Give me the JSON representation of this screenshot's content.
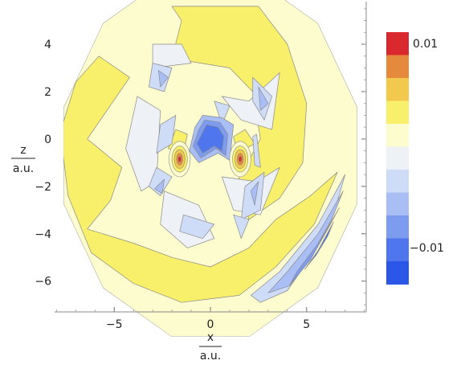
{
  "chart_data": {
    "type": "contour",
    "title": "",
    "xlabel": "x",
    "xunit": "a.u.",
    "ylabel": "z",
    "yunit": "a.u.",
    "xlim": [
      -8.1,
      8.1
    ],
    "ylim": [
      -7.3,
      5.8
    ],
    "xticks": [
      -5,
      0,
      5
    ],
    "yticks": [
      -6,
      -4,
      -2,
      0,
      2,
      4
    ],
    "xtick_labels": [
      "−5",
      "0",
      "5"
    ],
    "ytick_labels": [
      "−6",
      "−4",
      "−2",
      "0",
      "2",
      "4"
    ],
    "grid": false,
    "domain_shape": "dodecagon",
    "domain_radius": 7.9,
    "legend": "colorbar-right",
    "colorbar": {
      "levels": [
        -0.01,
        -0.008,
        -0.006,
        -0.004,
        -0.002,
        0,
        0.002,
        0.004,
        0.006,
        0.008,
        0.01
      ],
      "colors": [
        "#2b57e8",
        "#4f76ec",
        "#7d9cf0",
        "#a8bef5",
        "#cfdcf8",
        "#eef1f5",
        "#fcfccf",
        "#f8f06a",
        "#f2c94c",
        "#e58a3c",
        "#d9282e"
      ],
      "label_top": "0.01",
      "label_bottom": "−0.01"
    },
    "regions": [
      {
        "band": 7,
        "points": [
          [
            -2,
            5.6
          ],
          [
            2.5,
            5.6
          ],
          [
            4,
            4
          ],
          [
            5,
            1.5
          ],
          [
            4.8,
            -1
          ],
          [
            3.6,
            -2.5
          ],
          [
            2,
            -3.4
          ],
          [
            1.4,
            -1.8
          ],
          [
            2.6,
            0
          ],
          [
            2.2,
            2
          ],
          [
            1,
            3
          ],
          [
            -2,
            3.4
          ],
          [
            -1.5,
            5
          ]
        ]
      },
      {
        "band": 7,
        "points": [
          [
            -5.8,
            3.5
          ],
          [
            -4.2,
            2.6
          ],
          [
            -6.4,
            0
          ],
          [
            -4.6,
            -1.2
          ],
          [
            -5.2,
            -2.6
          ],
          [
            -6.4,
            -3.8
          ],
          [
            -4,
            -4.4
          ],
          [
            -2,
            -5
          ],
          [
            0,
            -5.4
          ],
          [
            2,
            -4.6
          ],
          [
            3.4,
            -3.4
          ],
          [
            5.2,
            -2.4
          ],
          [
            6.6,
            -1.4
          ],
          [
            5.4,
            -3.6
          ],
          [
            3.4,
            -5.4
          ],
          [
            1.5,
            -6.6
          ],
          [
            -1.5,
            -6.9
          ],
          [
            -4,
            -6.1
          ],
          [
            -6.2,
            -4.8
          ],
          [
            -7.4,
            -2.4
          ],
          [
            -7.8,
            0.3
          ],
          [
            -7,
            2.4
          ]
        ]
      },
      {
        "band": 7,
        "points": [
          [
            -1.8,
            0.4
          ],
          [
            -1.2,
            0.2
          ],
          [
            -1.4,
            -0.6
          ],
          [
            -2.2,
            -0.4
          ]
        ]
      },
      {
        "band": 7,
        "points": [
          [
            1.8,
            0.4
          ],
          [
            2.3,
            -0.2
          ],
          [
            1.4,
            -0.6
          ],
          [
            1.2,
            0.1
          ]
        ]
      },
      {
        "band": 5,
        "points": [
          [
            -3,
            4
          ],
          [
            -1.5,
            4
          ],
          [
            -1,
            3.2
          ],
          [
            -3,
            3
          ]
        ]
      },
      {
        "band": 5,
        "points": [
          [
            -3.8,
            1.8
          ],
          [
            -2.6,
            1.2
          ],
          [
            -2.8,
            -1.8
          ],
          [
            -3.6,
            -2.2
          ],
          [
            -4.4,
            -0.4
          ]
        ]
      },
      {
        "band": 5,
        "points": [
          [
            -2.4,
            -2.2
          ],
          [
            -0.6,
            -2.8
          ],
          [
            0.2,
            -4.2
          ],
          [
            -1.2,
            -4.6
          ],
          [
            -2.6,
            -3.6
          ]
        ]
      },
      {
        "band": 5,
        "points": [
          [
            0.6,
            1.8
          ],
          [
            2,
            1.6
          ],
          [
            3.6,
            2.8
          ],
          [
            3.2,
            0.4
          ],
          [
            1.6,
            0.8
          ]
        ]
      },
      {
        "band": 5,
        "points": [
          [
            0.6,
            -1.6
          ],
          [
            2.4,
            -1.8
          ],
          [
            3.6,
            -1.2
          ],
          [
            2.6,
            -3.2
          ],
          [
            1.2,
            -3
          ]
        ]
      },
      {
        "band": 4,
        "points": [
          [
            -3,
            3.2
          ],
          [
            -2,
            3
          ],
          [
            -2.4,
            2
          ],
          [
            -3.2,
            2.2
          ]
        ]
      },
      {
        "band": 4,
        "points": [
          [
            -2.6,
            0.6
          ],
          [
            -1.8,
            1
          ],
          [
            -2,
            -0.2
          ],
          [
            -2.8,
            -0.6
          ]
        ]
      },
      {
        "band": 4,
        "points": [
          [
            2.2,
            2.6
          ],
          [
            3.2,
            1.8
          ],
          [
            2.8,
            0.8
          ],
          [
            2.2,
            1.6
          ]
        ]
      },
      {
        "band": 4,
        "points": [
          [
            0.2,
            1.6
          ],
          [
            1,
            1.4
          ],
          [
            0.6,
            0.6
          ]
        ]
      },
      {
        "band": 4,
        "points": [
          [
            1.8,
            -2
          ],
          [
            2.8,
            -1.4
          ],
          [
            2.6,
            -3
          ],
          [
            1.6,
            -3.4
          ]
        ]
      },
      {
        "band": 4,
        "points": [
          [
            -2.8,
            -1.2
          ],
          [
            -2,
            -1.6
          ],
          [
            -2.6,
            -2.4
          ],
          [
            -3.2,
            -2
          ]
        ]
      },
      {
        "band": 4,
        "points": [
          [
            -1.4,
            -3.2
          ],
          [
            0.2,
            -3.6
          ],
          [
            -0.4,
            -4.2
          ],
          [
            -1.6,
            -3.9
          ]
        ]
      },
      {
        "band": 4,
        "points": [
          [
            1.2,
            -3.2
          ],
          [
            2,
            -3.4
          ],
          [
            1.6,
            -4.2
          ]
        ]
      },
      {
        "band": 3,
        "points": [
          [
            -2.7,
            2.9
          ],
          [
            -2.2,
            2.6
          ],
          [
            -2.6,
            2.2
          ]
        ]
      },
      {
        "band": 3,
        "points": [
          [
            2.5,
            2.2
          ],
          [
            3,
            1.5
          ],
          [
            2.6,
            1.2
          ]
        ]
      },
      {
        "band": 3,
        "points": [
          [
            -2.4,
            -1.7
          ],
          [
            -2.9,
            -2.1
          ],
          [
            -2.5,
            -2.3
          ]
        ]
      },
      {
        "band": 3,
        "points": [
          [
            2.1,
            -2.2
          ],
          [
            2.5,
            -1.8
          ],
          [
            2.3,
            -2.8
          ]
        ]
      },
      {
        "band": 3,
        "points": [
          [
            -0.4,
            1
          ],
          [
            0.6,
            0.9
          ],
          [
            1.2,
            0.6
          ],
          [
            1,
            -0.9
          ],
          [
            0.4,
            -0.6
          ],
          [
            -0.6,
            -1
          ],
          [
            -1.1,
            -0.5
          ],
          [
            -0.8,
            0.5
          ]
        ]
      },
      {
        "band": 2,
        "points": [
          [
            -0.3,
            0.8
          ],
          [
            0.5,
            0.7
          ],
          [
            0.9,
            0.2
          ],
          [
            0.8,
            -0.7
          ],
          [
            0.3,
            -0.4
          ],
          [
            -0.5,
            -0.8
          ],
          [
            -0.9,
            -0.3
          ],
          [
            -0.6,
            0.4
          ]
        ]
      },
      {
        "band": 1,
        "points": [
          [
            -0.2,
            0.6
          ],
          [
            0.4,
            0.5
          ],
          [
            0.7,
            0.1
          ],
          [
            0.6,
            -0.5
          ],
          [
            0.2,
            -0.3
          ],
          [
            -0.4,
            -0.6
          ],
          [
            -0.7,
            -0.2
          ],
          [
            -0.4,
            0.3
          ]
        ]
      },
      {
        "band": 4,
        "points": [
          [
            2.2,
            0.1
          ],
          [
            2.4,
            0.2
          ],
          [
            2.6,
            -1.2
          ],
          [
            2.3,
            -1.1
          ]
        ]
      },
      {
        "band": 4,
        "points": [
          [
            7,
            -1.5
          ],
          [
            5.6,
            -3.6
          ],
          [
            3.6,
            -5.6
          ],
          [
            2.1,
            -6.6
          ],
          [
            2.6,
            -6.9
          ],
          [
            4,
            -6.4
          ],
          [
            5.2,
            -5
          ],
          [
            6.4,
            -3.2
          ]
        ]
      },
      {
        "band": 3,
        "points": [
          [
            6.9,
            -2.2
          ],
          [
            5.6,
            -4
          ],
          [
            4,
            -5.6
          ],
          [
            3,
            -6.5
          ],
          [
            4.1,
            -6.2
          ],
          [
            5.4,
            -4.7
          ],
          [
            6.3,
            -3.4
          ]
        ]
      },
      {
        "band": 2,
        "points": [
          [
            6.7,
            -2.9
          ],
          [
            5.7,
            -4.3
          ],
          [
            4.5,
            -5.6
          ],
          [
            4.1,
            -6.2
          ],
          [
            5.2,
            -5.1
          ],
          [
            6.1,
            -3.8
          ]
        ]
      },
      {
        "band": 1,
        "points": [
          [
            6.4,
            -3.5
          ],
          [
            5.6,
            -4.7
          ],
          [
            4.9,
            -5.5
          ],
          [
            5.5,
            -4.9
          ],
          [
            6.1,
            -4.1
          ]
        ]
      }
    ],
    "peaks": [
      {
        "x": -1.6,
        "y": -0.85,
        "rings": [
          [
            0.55,
            0.75,
            6
          ],
          [
            0.4,
            0.55,
            7
          ],
          [
            0.28,
            0.4,
            8
          ],
          [
            0.16,
            0.25,
            9
          ],
          [
            0.08,
            0.12,
            10
          ]
        ]
      },
      {
        "x": 1.55,
        "y": -0.85,
        "rings": [
          [
            0.55,
            0.75,
            6
          ],
          [
            0.4,
            0.55,
            7
          ],
          [
            0.28,
            0.4,
            8
          ],
          [
            0.16,
            0.25,
            9
          ],
          [
            0.08,
            0.12,
            10
          ]
        ]
      }
    ]
  }
}
